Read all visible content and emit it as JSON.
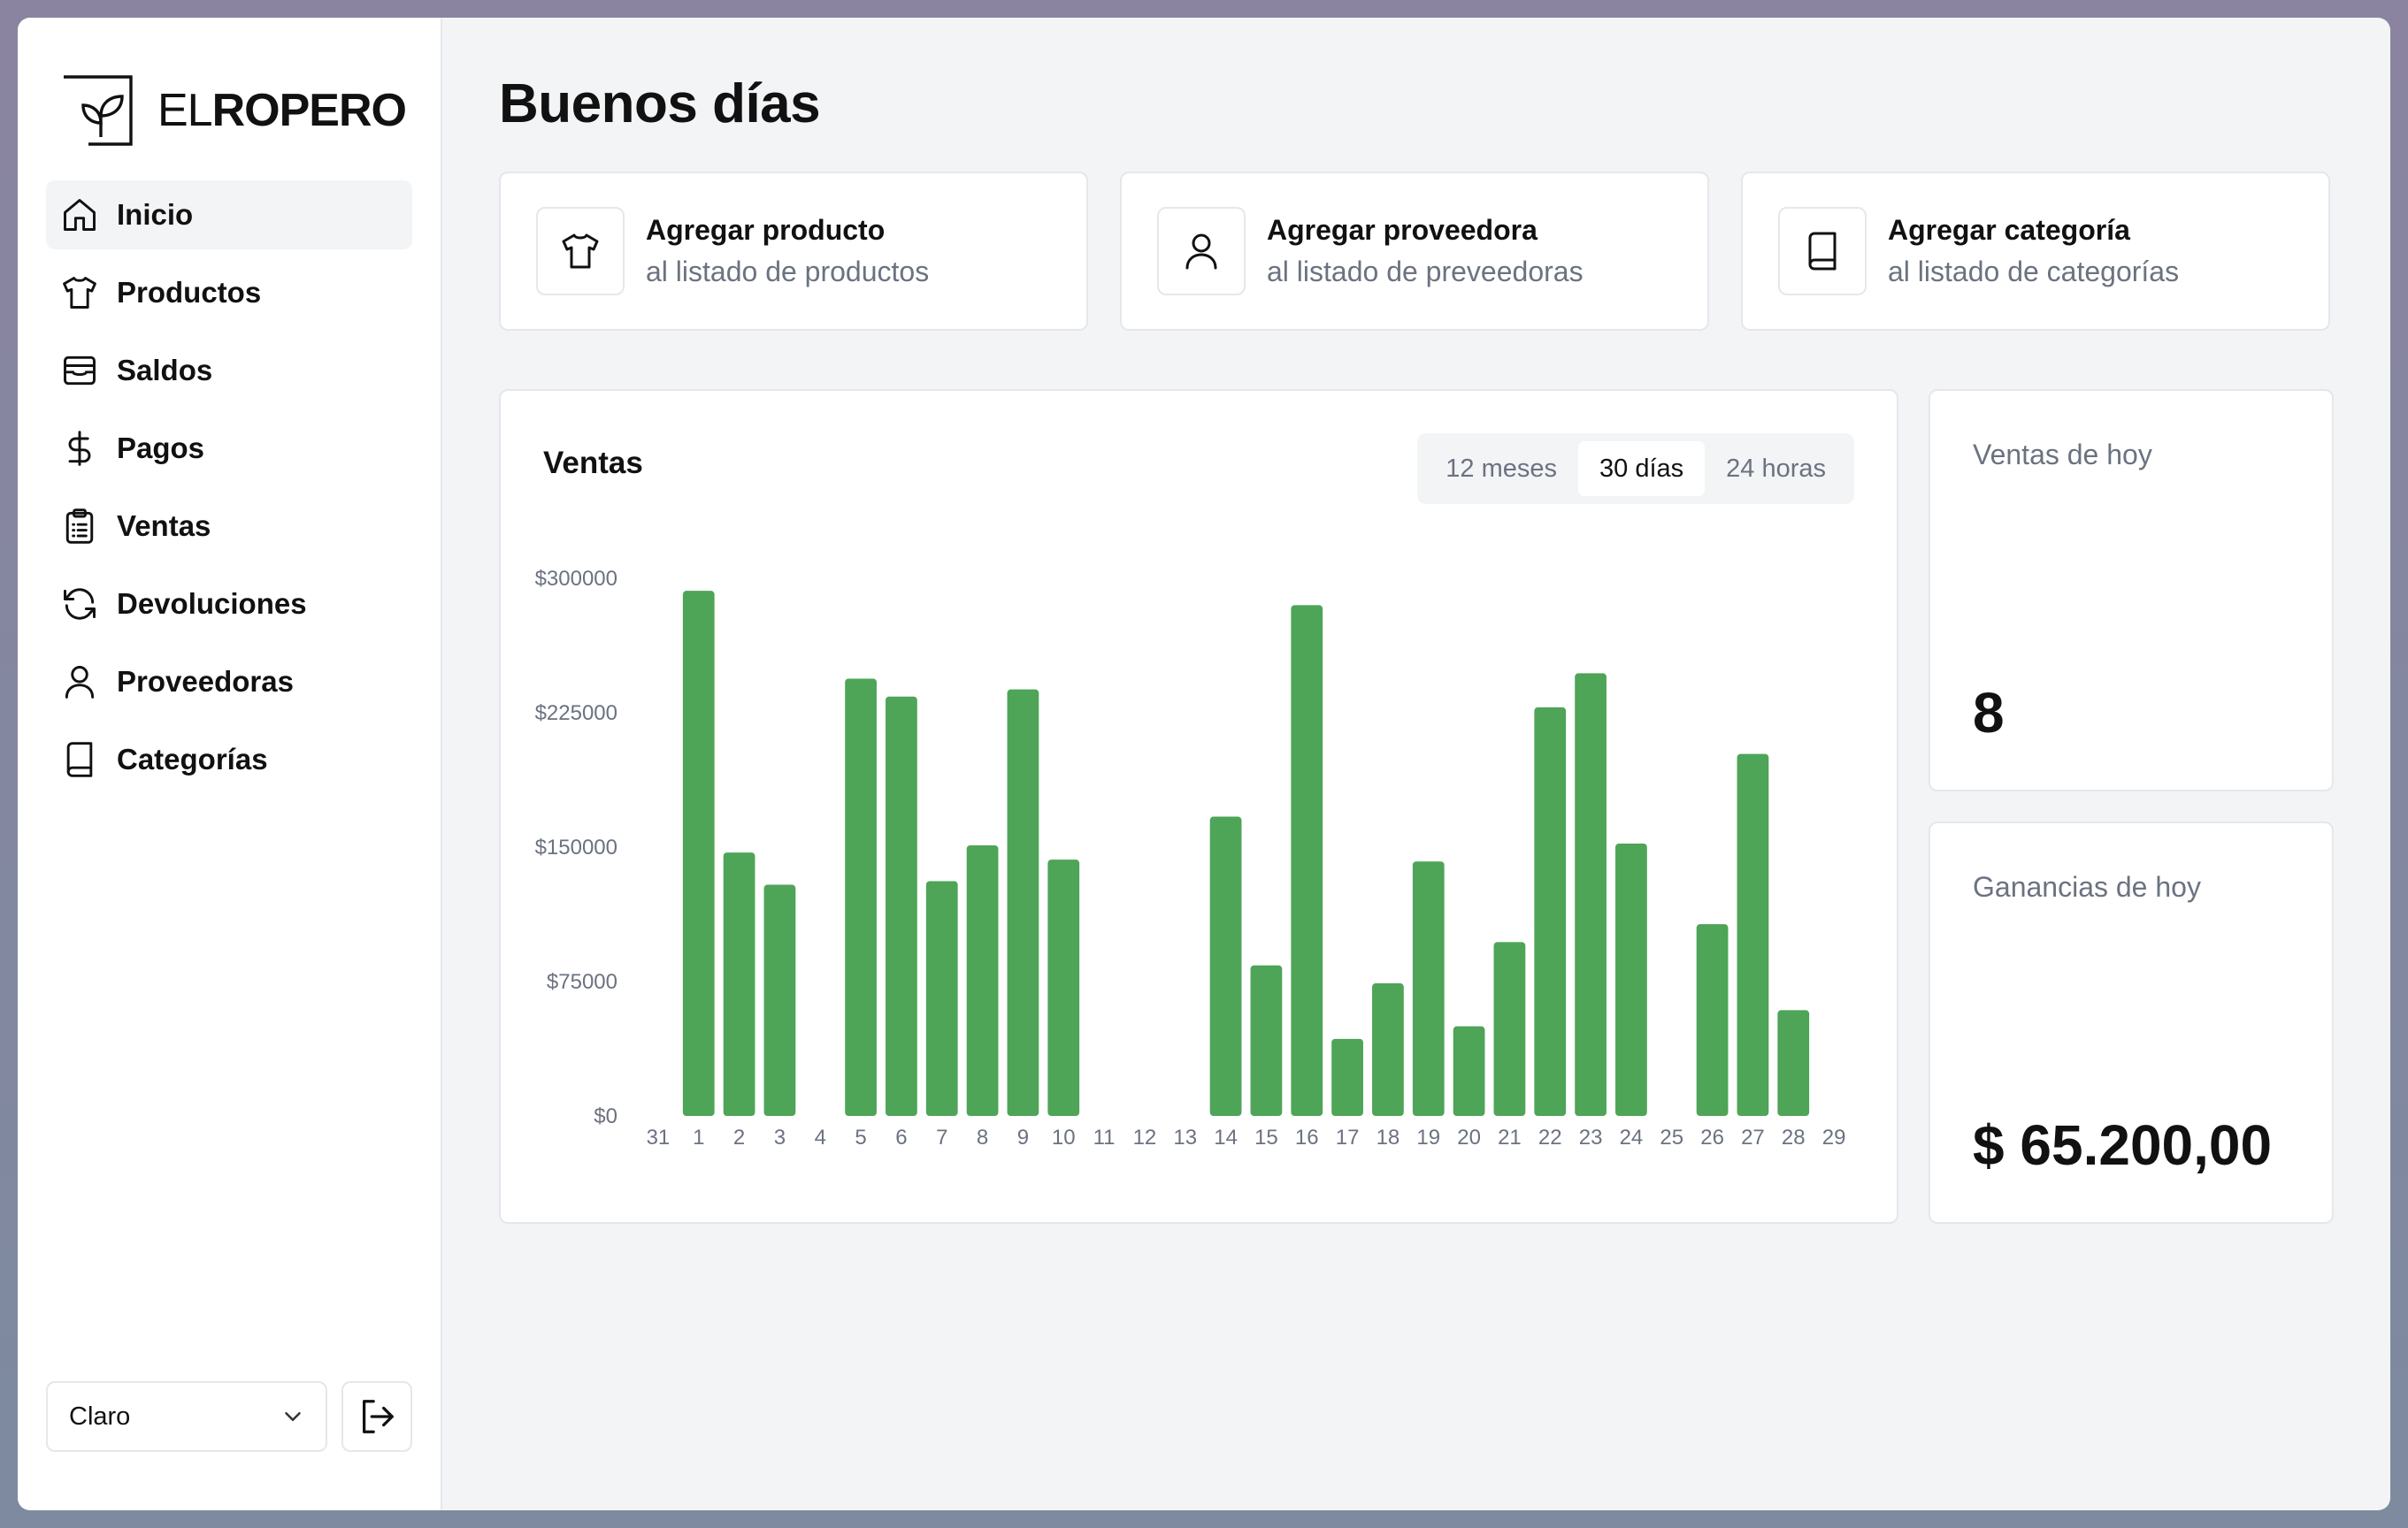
{
  "brand": {
    "prefix": "EL",
    "name": "ROPERO"
  },
  "sidebar": {
    "items": [
      {
        "label": "Inicio",
        "icon": "home-icon",
        "active": true
      },
      {
        "label": "Productos",
        "icon": "shirt-icon"
      },
      {
        "label": "Saldos",
        "icon": "box-icon"
      },
      {
        "label": "Pagos",
        "icon": "dollar-icon"
      },
      {
        "label": "Ventas",
        "icon": "clipboard-icon"
      },
      {
        "label": "Devoluciones",
        "icon": "refresh-icon"
      },
      {
        "label": "Proveedoras",
        "icon": "user-icon"
      },
      {
        "label": "Categorías",
        "icon": "book-icon"
      }
    ],
    "theme_select": {
      "value": "Claro"
    }
  },
  "main": {
    "greeting": "Buenos días",
    "quick_actions": [
      {
        "title": "Agregar producto",
        "subtitle": "al listado de productos",
        "icon": "shirt-icon"
      },
      {
        "title": "Agregar proveedora",
        "subtitle": "al listado de preveedoras",
        "icon": "user-icon"
      },
      {
        "title": "Agregar categoría",
        "subtitle": "al listado de categorías",
        "icon": "book-icon"
      }
    ],
    "chart": {
      "title": "Ventas",
      "tabs": [
        {
          "label": "12 meses"
        },
        {
          "label": "30 días",
          "active": true
        },
        {
          "label": "24 horas"
        }
      ]
    },
    "stats": [
      {
        "label": "Ventas de hoy",
        "value": "8"
      },
      {
        "label": "Ganancias de hoy",
        "value": "$ 65.200,00"
      }
    ]
  },
  "colors": {
    "bar": "#4ea457",
    "accent_text": "#111111",
    "muted_text": "#6b7280"
  },
  "chart_data": {
    "type": "bar",
    "title": "Ventas",
    "categories": [
      "31",
      "1",
      "2",
      "3",
      "4",
      "5",
      "6",
      "7",
      "8",
      "9",
      "10",
      "11",
      "12",
      "13",
      "14",
      "15",
      "16",
      "17",
      "18",
      "19",
      "20",
      "21",
      "22",
      "23",
      "24",
      "25",
      "26",
      "27",
      "28",
      "29"
    ],
    "values": [
      0,
      293000,
      147000,
      129000,
      0,
      244000,
      234000,
      131000,
      151000,
      238000,
      143000,
      0,
      0,
      0,
      167000,
      84000,
      285000,
      43000,
      74000,
      142000,
      50000,
      97000,
      228000,
      247000,
      152000,
      0,
      107000,
      202000,
      59000,
      0
    ],
    "y_ticks": [
      "$0",
      "$75000",
      "$150000",
      "$225000",
      "$300000"
    ],
    "y_tick_values": [
      0,
      75000,
      150000,
      225000,
      300000
    ],
    "ylim": [
      0,
      300000
    ],
    "grid": false
  }
}
